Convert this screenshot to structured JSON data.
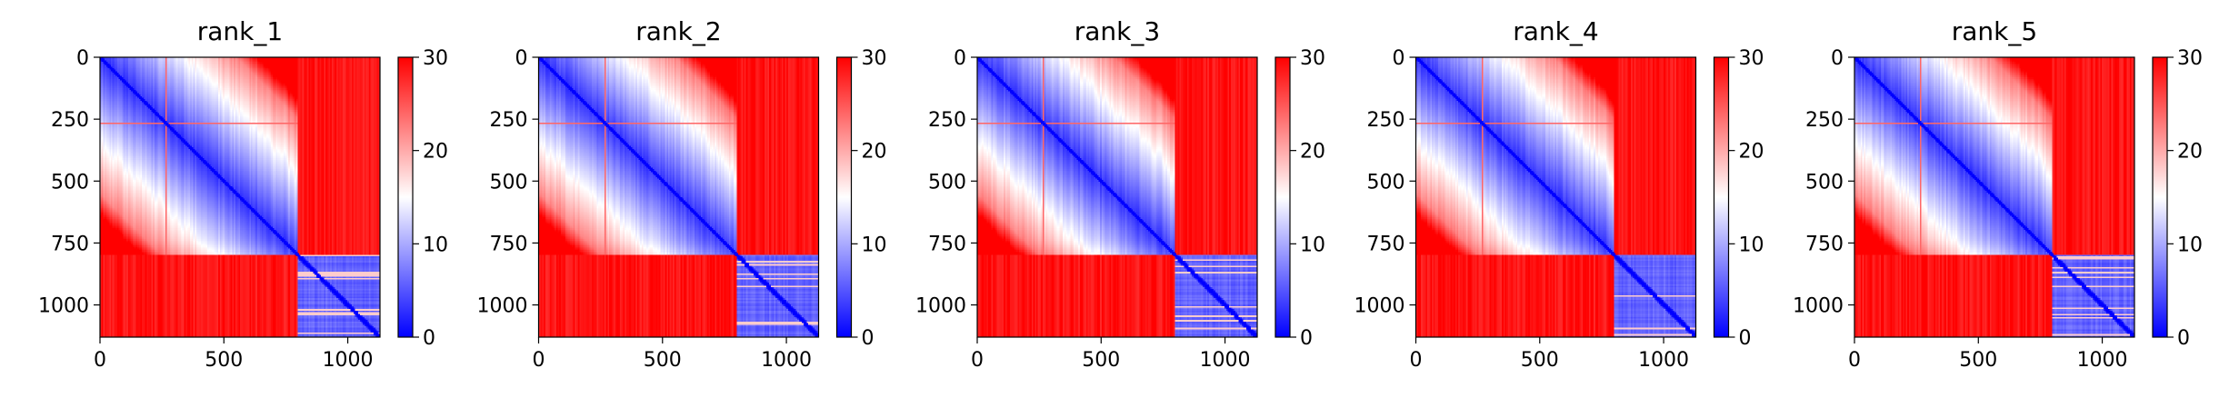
{
  "chart_data": [
    {
      "type": "heatmap",
      "title": "rank_1",
      "x_range": [
        0,
        1130
      ],
      "y_range": [
        1130,
        0
      ],
      "x_ticks": [
        "0",
        "500",
        "1000"
      ],
      "y_ticks": [
        "0",
        "250",
        "500",
        "750",
        "1000"
      ],
      "colorbar": {
        "colormap": "bwr",
        "min": 0,
        "max": 30,
        "ticks": [
          "0",
          "10",
          "20",
          "30"
        ]
      },
      "structure": {
        "block_boundary": 800,
        "description_values": {
          "diagonal": 0,
          "within_first_block_far": 22,
          "cross_blocks": 30,
          "within_second_block": 5
        }
      }
    },
    {
      "type": "heatmap",
      "title": "rank_2",
      "x_range": [
        0,
        1130
      ],
      "y_range": [
        1130,
        0
      ],
      "x_ticks": [
        "0",
        "500",
        "1000"
      ],
      "y_ticks": [
        "0",
        "250",
        "500",
        "750",
        "1000"
      ],
      "colorbar": {
        "colormap": "bwr",
        "min": 0,
        "max": 30,
        "ticks": [
          "0",
          "10",
          "20",
          "30"
        ]
      },
      "structure": {
        "block_boundary": 800,
        "description_values": {
          "diagonal": 0,
          "within_first_block_far": 22,
          "cross_blocks": 30,
          "within_second_block": 5
        }
      }
    },
    {
      "type": "heatmap",
      "title": "rank_3",
      "x_range": [
        0,
        1130
      ],
      "y_range": [
        1130,
        0
      ],
      "x_ticks": [
        "0",
        "500",
        "1000"
      ],
      "y_ticks": [
        "0",
        "250",
        "500",
        "750",
        "1000"
      ],
      "colorbar": {
        "colormap": "bwr",
        "min": 0,
        "max": 30,
        "ticks": [
          "0",
          "10",
          "20",
          "30"
        ]
      },
      "structure": {
        "block_boundary": 800,
        "description_values": {
          "diagonal": 0,
          "within_first_block_far": 22,
          "cross_blocks": 30,
          "within_second_block": 5
        }
      }
    },
    {
      "type": "heatmap",
      "title": "rank_4",
      "x_range": [
        0,
        1130
      ],
      "y_range": [
        1130,
        0
      ],
      "x_ticks": [
        "0",
        "500",
        "1000"
      ],
      "y_ticks": [
        "0",
        "250",
        "500",
        "750",
        "1000"
      ],
      "colorbar": {
        "colormap": "bwr",
        "min": 0,
        "max": 30,
        "ticks": [
          "0",
          "10",
          "20",
          "30"
        ]
      },
      "structure": {
        "block_boundary": 800,
        "description_values": {
          "diagonal": 0,
          "within_first_block_far": 22,
          "cross_blocks": 30,
          "within_second_block": 5
        }
      }
    },
    {
      "type": "heatmap",
      "title": "rank_5",
      "x_range": [
        0,
        1130
      ],
      "y_range": [
        1130,
        0
      ],
      "x_ticks": [
        "0",
        "500",
        "1000"
      ],
      "y_ticks": [
        "0",
        "250",
        "500",
        "750",
        "1000"
      ],
      "colorbar": {
        "colormap": "bwr",
        "min": 0,
        "max": 30,
        "ticks": [
          "0",
          "10",
          "20",
          "30"
        ]
      },
      "structure": {
        "block_boundary": 800,
        "description_values": {
          "diagonal": 0,
          "within_first_block_far": 22,
          "cross_blocks": 30,
          "within_second_block": 5
        }
      }
    }
  ]
}
